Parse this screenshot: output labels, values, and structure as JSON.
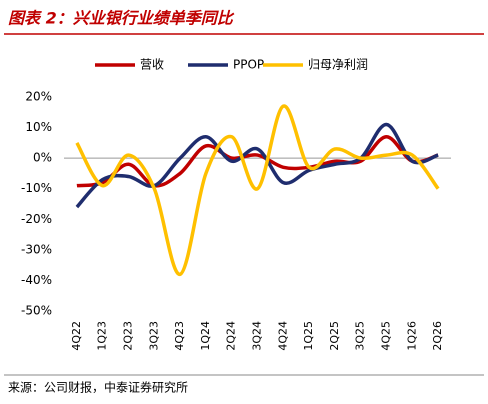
{
  "header": {
    "title": "图表 2：兴业银行业绩单季同比"
  },
  "chart_data": {
    "type": "line",
    "categories": [
      "4Q22",
      "1Q23",
      "2Q23",
      "3Q23",
      "4Q23",
      "1Q24",
      "2Q24",
      "3Q24",
      "4Q24",
      "1Q25",
      "2Q25",
      "3Q25",
      "4Q25",
      "1Q26",
      "2Q26"
    ],
    "series": [
      {
        "name": "营收",
        "color": "#c00000",
        "values": [
          -9,
          -8,
          -2,
          -9,
          -5,
          4,
          0,
          1,
          -3,
          -3,
          -1,
          -1,
          7,
          -1,
          1
        ]
      },
      {
        "name": "PPOP",
        "color": "#1f2d6e",
        "values": [
          -16,
          -7,
          -6,
          -9,
          0,
          7,
          -1,
          3,
          -8,
          -4,
          -2,
          0,
          11,
          -1,
          1
        ]
      },
      {
        "name": "归母净利润",
        "color": "#ffc000",
        "values": [
          5,
          -9,
          1,
          -10,
          -38,
          -5,
          7,
          -10,
          17,
          -3,
          3,
          0,
          1,
          1,
          -10
        ]
      }
    ],
    "ylim": [
      -50,
      20
    ],
    "yticks": [
      {
        "value": 20,
        "label": "20%"
      },
      {
        "value": 10,
        "label": "10%"
      },
      {
        "value": 0,
        "label": "0%"
      },
      {
        "value": -10,
        "label": "-10%"
      },
      {
        "value": -20,
        "label": "-20%"
      },
      {
        "value": -30,
        "label": "-30%"
      },
      {
        "value": -40,
        "label": "-40%"
      },
      {
        "value": -50,
        "label": "-50%"
      }
    ],
    "smooth": true
  },
  "footer": {
    "source": "来源：公司财报，中泰证券研究所"
  }
}
